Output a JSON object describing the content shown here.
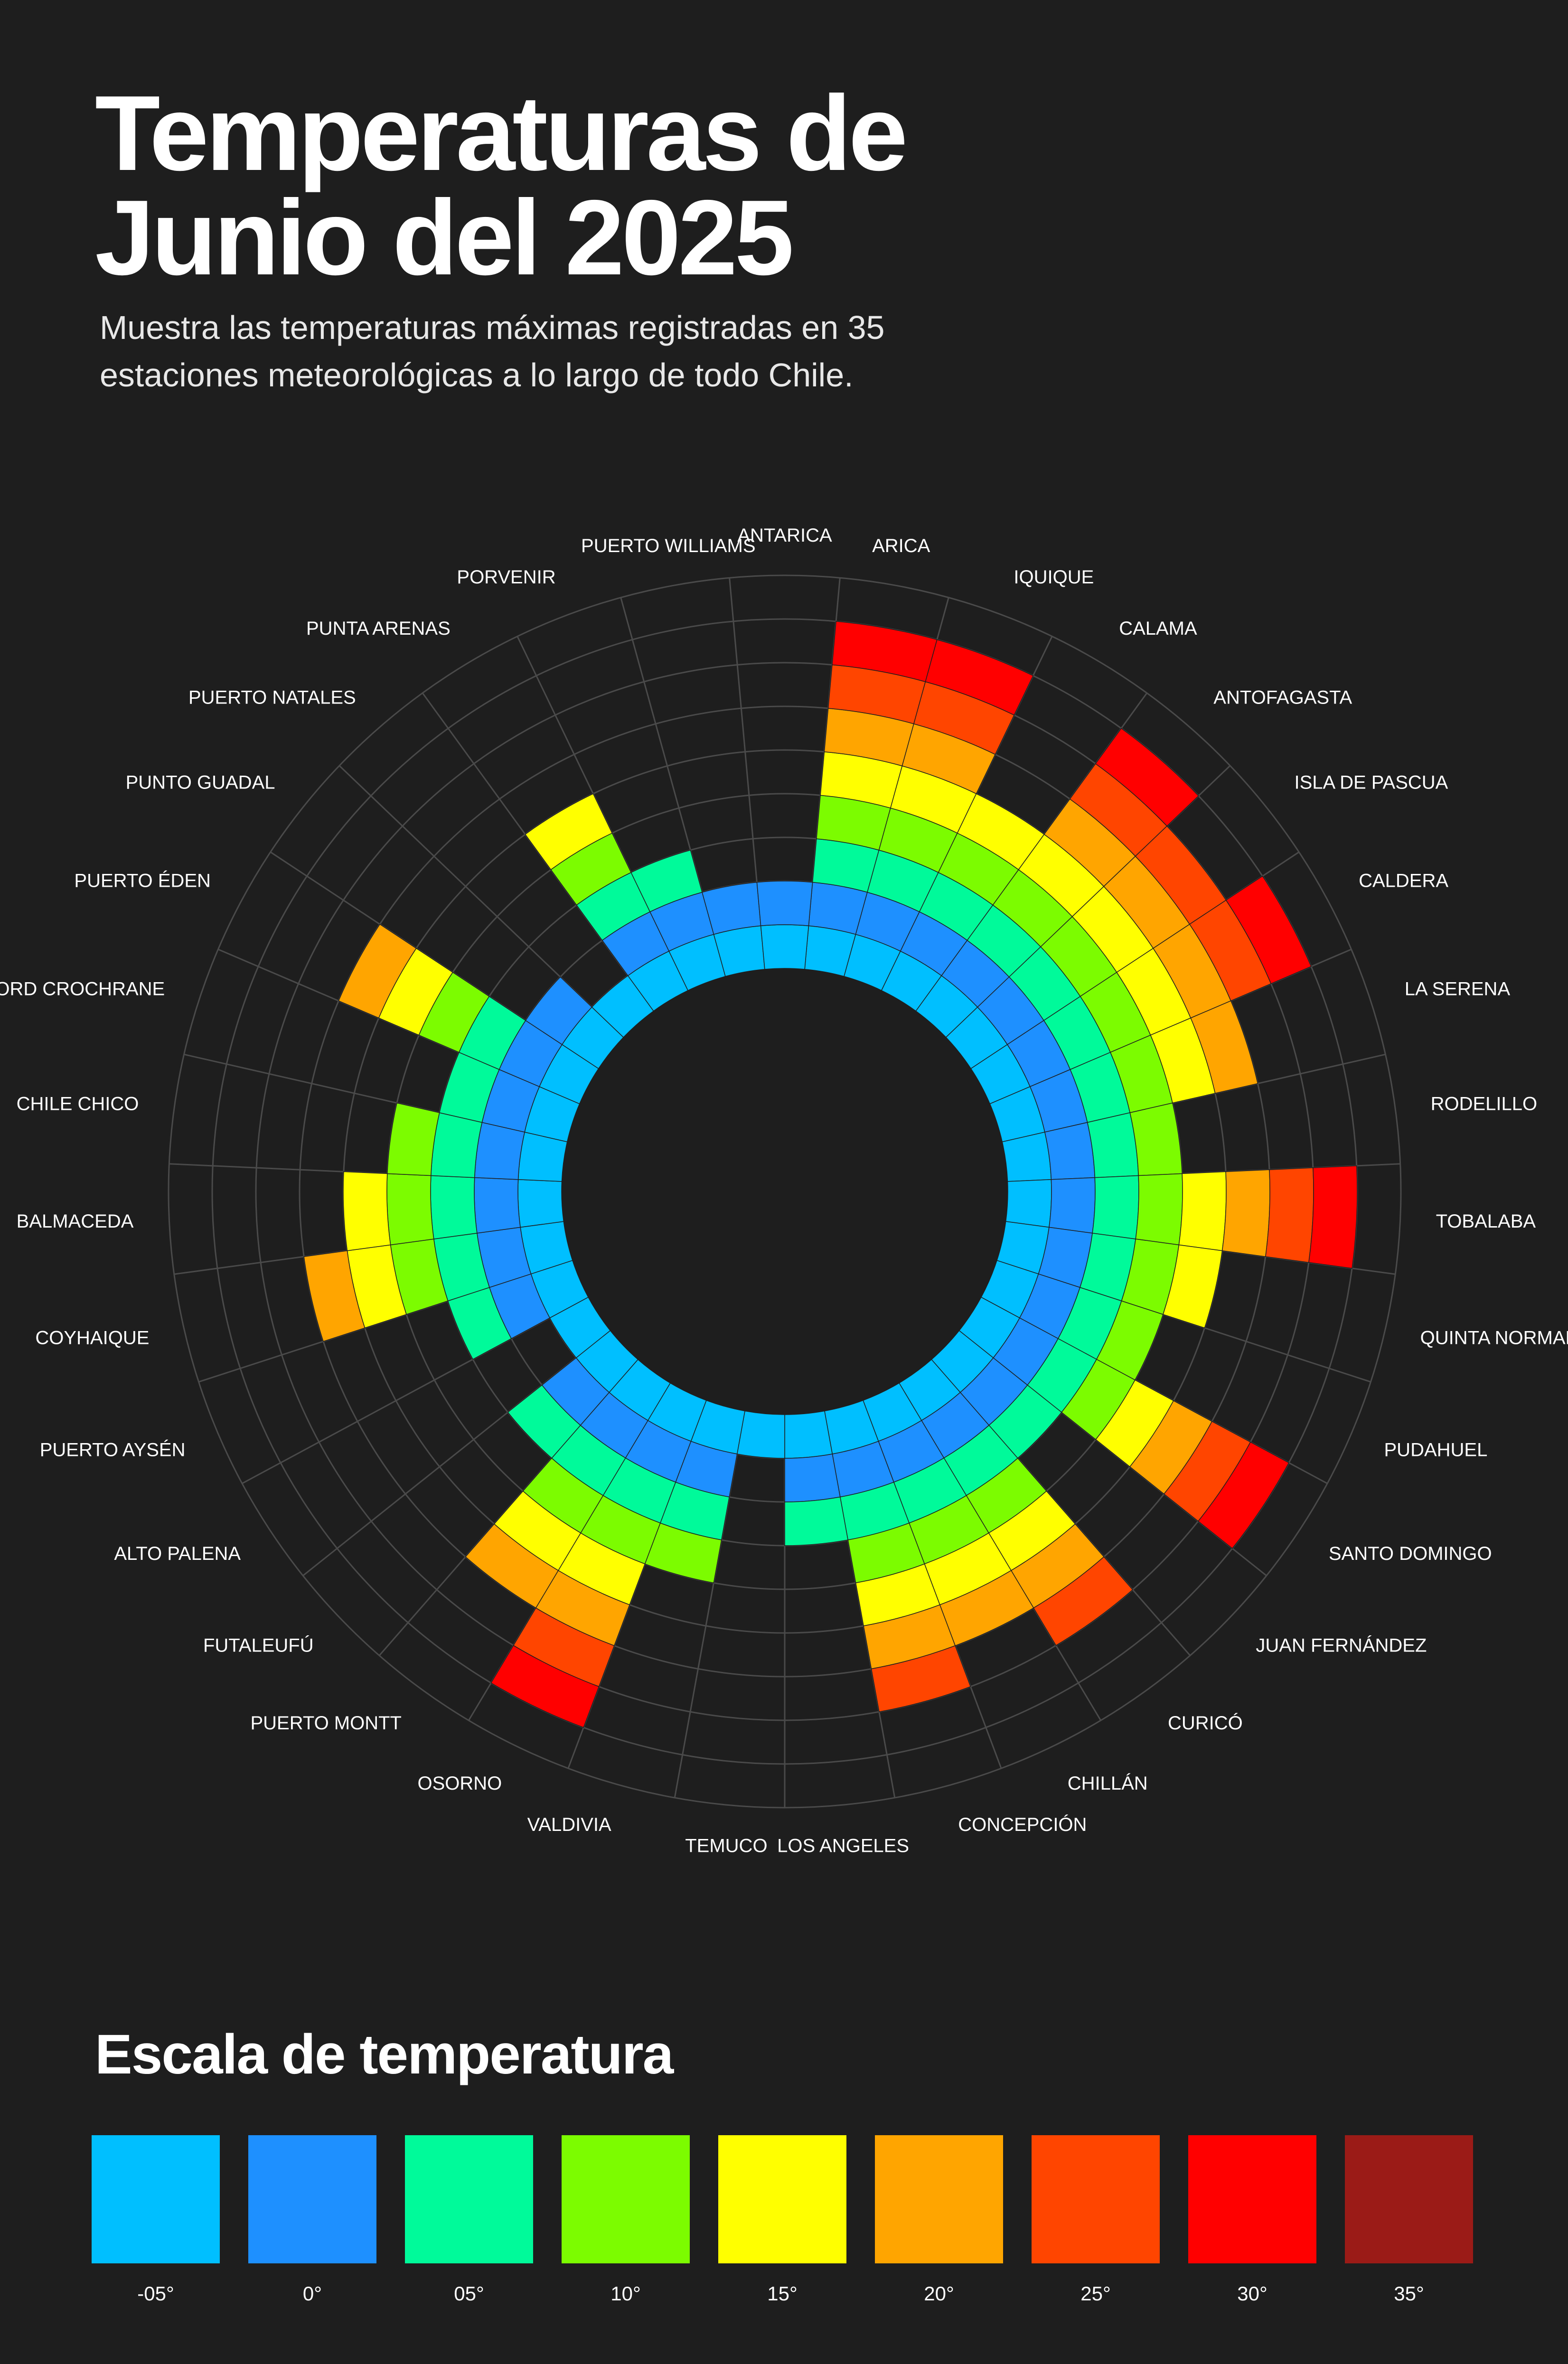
{
  "title_lines": [
    "Temperaturas de",
    "Junio del 2025"
  ],
  "subtitle_lines": [
    "Muestra las temperaturas máximas registradas en 35",
    "estaciones meteorológicas a lo largo de todo Chile."
  ],
  "legend": {
    "title": "Escala de temperatura",
    "items": [
      {
        "label": "-05°",
        "color": "#00bfff"
      },
      {
        "label": "0°",
        "color": "#1e90ff"
      },
      {
        "label": "05°",
        "color": "#00fa9a"
      },
      {
        "label": "10°",
        "color": "#7cfc00"
      },
      {
        "label": "15°",
        "color": "#ffff00"
      },
      {
        "label": "20°",
        "color": "#ffa500"
      },
      {
        "label": "25°",
        "color": "#ff4500"
      },
      {
        "label": "30°",
        "color": "#ff0000"
      },
      {
        "label": "35°",
        "color": "#9b1b17"
      }
    ]
  },
  "chart_data": {
    "type": "radial-bar",
    "unit": "°C",
    "value_description": "max temperature, shown as stacked 5° bands starting at -05°",
    "scale_levels": [
      -5,
      0,
      5,
      10,
      15,
      20,
      25,
      30,
      35
    ],
    "categories": [
      "ARICA",
      "IQUIQUE",
      "CALAMA",
      "ANTOFAGASTA",
      "ISLA DE PASCUA",
      "CALDERA",
      "LA SERENA",
      "RODELILLO",
      "TOBALABA",
      "QUINTA NORMAL",
      "PUDAHUEL",
      "SANTO DOMINGO",
      "JUAN FERNÁNDEZ",
      "CURICÓ",
      "CHILLÁN",
      "CONCEPCIÓN",
      "LOS ANGELES",
      "TEMUCO",
      "VALDIVIA",
      "OSORNO",
      "PUERTO MONTT",
      "FUTALEUFÚ",
      "ALTO PALENA",
      "PUERTO AYSÉN",
      "COYHAIQUE",
      "BALMACEDA",
      "CHILE CHICO",
      "LORD CROCHRANE",
      "PUERTO ÉDEN",
      "PUNTO GUADAL",
      "PUERTO NATALES",
      "PUNTA ARENAS",
      "PORVENIR",
      "PUERTO WILLIAMS",
      "ANTARICA"
    ],
    "values": [
      30,
      30,
      15,
      30,
      25,
      30,
      20,
      10,
      30,
      15,
      10,
      30,
      5,
      25,
      20,
      25,
      5,
      -5,
      10,
      30,
      20,
      5,
      -5,
      5,
      20,
      15,
      10,
      5,
      20,
      0,
      -5,
      15,
      5,
      0,
      0
    ]
  }
}
